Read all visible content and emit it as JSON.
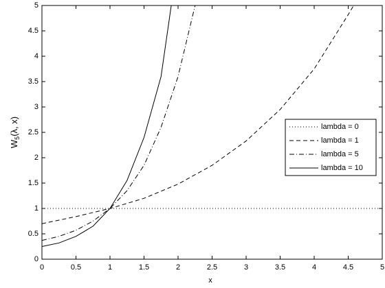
{
  "chart_data": {
    "type": "line",
    "xlabel": "x",
    "ylabel": {
      "main": "W",
      "sub": "5",
      "rest": "(λ, x)"
    },
    "xlim": [
      0,
      5
    ],
    "ylim": [
      0,
      5
    ],
    "xticks": [
      0,
      0.5,
      1,
      1.5,
      2,
      2.5,
      3,
      3.5,
      4,
      4.5,
      5
    ],
    "yticks": [
      0,
      0.5,
      1,
      1.5,
      2,
      2.5,
      3,
      3.5,
      4,
      4.5,
      5
    ],
    "legend": "right",
    "series": [
      {
        "name": "lambda = 0",
        "color": "#000000",
        "line_style": "dotted",
        "x": [
          0,
          5
        ],
        "values": [
          1,
          1
        ]
      },
      {
        "name": "lambda = 1",
        "color": "#000000",
        "line_style": "dashed",
        "x": [
          0,
          0.5,
          1,
          1.5,
          2,
          2.5,
          3,
          3.5,
          4,
          4.5,
          4.58
        ],
        "values": [
          0.7,
          0.84,
          1.0,
          1.2,
          1.48,
          1.85,
          2.33,
          2.95,
          3.75,
          4.82,
          5.0
        ]
      },
      {
        "name": "lambda = 5",
        "color": "#000000",
        "line_style": "dashdot",
        "x": [
          0,
          0.25,
          0.5,
          0.75,
          1,
          1.25,
          1.5,
          1.75,
          2,
          2.25
        ],
        "values": [
          0.37,
          0.45,
          0.57,
          0.75,
          1.0,
          1.35,
          1.85,
          2.6,
          3.6,
          5.0
        ]
      },
      {
        "name": "lambda = 10",
        "color": "#000000",
        "line_style": "solid",
        "x": [
          0,
          0.25,
          0.5,
          0.75,
          1,
          1.25,
          1.5,
          1.75,
          1.9
        ],
        "values": [
          0.25,
          0.32,
          0.45,
          0.65,
          1.0,
          1.55,
          2.4,
          3.6,
          5.0
        ]
      }
    ]
  }
}
